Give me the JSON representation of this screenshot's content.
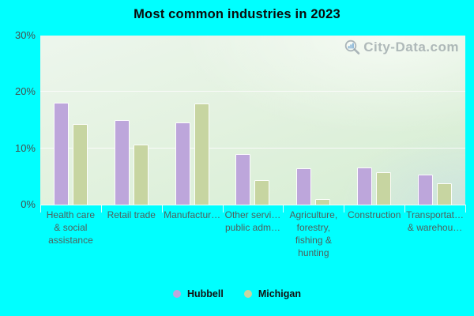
{
  "title": "Most common industries in 2023",
  "watermark": {
    "text": "City-Data.com"
  },
  "colors": {
    "background": "#00ffff",
    "hubbell": "#bda6db",
    "michigan": "#c7d5a1",
    "grid": "#fffcff",
    "axis_text": "#4e5f5c",
    "title_text": "#0b0b0b"
  },
  "chart_data": {
    "type": "bar",
    "title": "Most common industries in 2023",
    "categories": [
      "Health care & social assistance",
      "Retail trade",
      "Manufactur…",
      "Other servi… public adm…",
      "Agriculture, forestry, fishing & hunting",
      "Construction",
      "Transportat… & warehou…"
    ],
    "category_label_lines": [
      [
        "Health care",
        "& social",
        "assistance"
      ],
      [
        "Retail trade"
      ],
      [
        "Manufactur…"
      ],
      [
        "Other servi…",
        "public adm…"
      ],
      [
        "Agriculture,",
        "forestry,",
        "fishing &",
        "hunting"
      ],
      [
        "Construction"
      ],
      [
        "Transportat…",
        "& warehou…"
      ]
    ],
    "series": [
      {
        "name": "Hubbell",
        "color": "#bda6db",
        "values": [
          18.1,
          15.0,
          14.6,
          9.0,
          6.5,
          6.6,
          5.3
        ]
      },
      {
        "name": "Michigan",
        "color": "#c7d5a1",
        "values": [
          14.3,
          10.7,
          18.0,
          4.4,
          1.0,
          5.8,
          3.8
        ]
      }
    ],
    "xlabel": "",
    "ylabel": "",
    "ylim": [
      0,
      30
    ],
    "yticks": [
      0,
      10,
      20,
      30
    ],
    "ytick_suffix": "%",
    "grid": true,
    "legend_position": "bottom"
  },
  "legend": {
    "items": [
      {
        "label": "Hubbell",
        "color": "#bda6db"
      },
      {
        "label": "Michigan",
        "color": "#c7d5a1"
      }
    ]
  }
}
